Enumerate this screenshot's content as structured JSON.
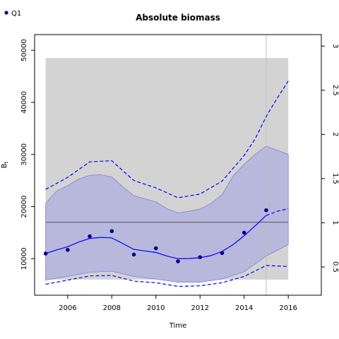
{
  "chart_data": {
    "type": "line",
    "title": "Absolute biomass",
    "xlabel": "Time",
    "ylabel": "B",
    "ylabel_subscript": "t",
    "xlim": [
      2004.5,
      2017.5
    ],
    "ylim": [
      3000,
      53000
    ],
    "y2lim": [
      0.18,
      3.13
    ],
    "x_ticks": [
      2006,
      2008,
      2010,
      2012,
      2014,
      2016
    ],
    "y_ticks": [
      10000,
      20000,
      30000,
      40000,
      50000
    ],
    "y2_ticks": [
      0.5,
      1,
      1.5,
      2,
      2.5,
      3
    ],
    "y2_tick_labels": [
      "0.5",
      "1",
      "1.5",
      "2",
      "2.5",
      "3"
    ],
    "background_band": {
      "x": [
        2005,
        2016
      ],
      "y": [
        6000,
        48500
      ],
      "color": "#d3d3d3"
    },
    "reference_line": {
      "y": 17000,
      "color": "#555555"
    },
    "vertical_line": {
      "x": 2015,
      "color": "#c0c0c0"
    },
    "legend": {
      "position": "top-left",
      "entries": [
        "Q1"
      ]
    },
    "colors": {
      "points": "#00008b",
      "fit": "#0000ff",
      "band": "#b8b8dc",
      "band_edge": "#8080d0"
    },
    "series": [
      {
        "name": "Q1",
        "kind": "observations",
        "x": [
          2005,
          2006,
          2007,
          2008,
          2009,
          2010,
          2011,
          2012,
          2013,
          2014,
          2015
        ],
        "y": [
          11000,
          11700,
          14300,
          15300,
          10800,
          12000,
          9500,
          10300,
          11100,
          15000,
          19300
        ]
      },
      {
        "kind": "estimate",
        "x": [
          2005,
          2005.5,
          2006,
          2006.5,
          2007,
          2007.5,
          2008,
          2008.5,
          2009,
          2009.5,
          2010,
          2010.5,
          2011,
          2011.5,
          2012,
          2012.5,
          2013,
          2013.5,
          2014,
          2014.5,
          2015
        ],
        "y": [
          11000,
          11700,
          12300,
          13200,
          13900,
          14100,
          14000,
          12900,
          11800,
          11500,
          11200,
          10500,
          10000,
          10050,
          10200,
          10600,
          11400,
          12700,
          14400,
          16300,
          18300
        ]
      },
      {
        "kind": "forecast",
        "x": [
          2015,
          2015.5,
          2016
        ],
        "y": [
          18300,
          19100,
          19600
        ]
      },
      {
        "kind": "ci_upper",
        "x": [
          2005,
          2006,
          2007,
          2008,
          2009,
          2010,
          2011,
          2012,
          2013,
          2014,
          2014.5,
          2015,
          2015.5,
          2016
        ],
        "y": [
          23300,
          25600,
          28600,
          28800,
          25000,
          23600,
          21700,
          22400,
          24900,
          29800,
          33000,
          37300,
          40800,
          44100
        ]
      },
      {
        "kind": "ci_lower",
        "x": [
          2005,
          2006,
          2007,
          2008,
          2009,
          2010,
          2011,
          2012,
          2013,
          2014,
          2015,
          2016
        ],
        "y": [
          5100,
          5900,
          6700,
          6800,
          5700,
          5400,
          4700,
          4800,
          5400,
          6600,
          8700,
          8500
        ]
      },
      {
        "kind": "band_upper",
        "x": [
          2005,
          2005.5,
          2006,
          2006.5,
          2007,
          2007.5,
          2008,
          2008.5,
          2009,
          2009.5,
          2010,
          2010.5,
          2011,
          2011.5,
          2012,
          2012.5,
          2013,
          2013.5,
          2014,
          2014.5,
          2015,
          2015.5,
          2016
        ],
        "y": [
          20600,
          23000,
          24000,
          25300,
          26000,
          26100,
          25700,
          23800,
          22100,
          21500,
          20900,
          19600,
          18800,
          19100,
          19500,
          20600,
          22300,
          25900,
          28100,
          30000,
          31600,
          30800,
          30000
        ]
      },
      {
        "kind": "band_lower",
        "x": [
          2005,
          2006,
          2007,
          2008,
          2009,
          2010,
          2011,
          2012,
          2013,
          2014,
          2015,
          2016
        ],
        "y": [
          5900,
          6600,
          7400,
          7600,
          6600,
          6100,
          5500,
          5500,
          6100,
          7500,
          10500,
          12700
        ]
      }
    ]
  }
}
